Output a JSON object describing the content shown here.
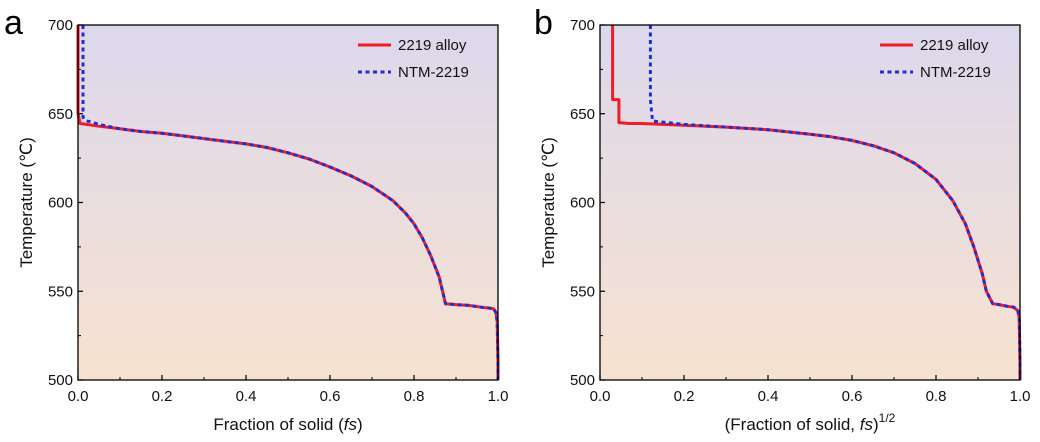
{
  "colors": {
    "alloy_2219": "#ee1c25",
    "ntm_2219": "#1f2fd6",
    "bg_top": "#dcd8ec",
    "bg_bottom": "#f7e2d0"
  },
  "chart_data": [
    {
      "type": "line",
      "panel_label": "a",
      "xlabel_main": "Fraction of solid (",
      "xlabel_italic": "fs",
      "xlabel_end": ")",
      "xlabel_sup": "",
      "ylabel": "Temperature (℃)",
      "xlim": [
        0.0,
        1.0
      ],
      "ylim": [
        500,
        700
      ],
      "xticks": [
        "0.0",
        "0.2",
        "0.4",
        "0.6",
        "0.8",
        "1.0"
      ],
      "yticks": [
        "500",
        "550",
        "600",
        "650",
        "700"
      ],
      "legend_position": "top-right",
      "series": [
        {
          "name": "2219 alloy",
          "style": "solid",
          "x": [
            0.0,
            0.0,
            0.0,
            0.005,
            0.02,
            0.05,
            0.1,
            0.15,
            0.2,
            0.25,
            0.3,
            0.35,
            0.4,
            0.45,
            0.5,
            0.55,
            0.6,
            0.65,
            0.7,
            0.75,
            0.78,
            0.8,
            0.82,
            0.84,
            0.86,
            0.875,
            0.9,
            0.93,
            0.96,
            0.98,
            0.99,
            0.995,
            0.998,
            1.0,
            1.0
          ],
          "y": [
            700,
            660,
            650,
            644.5,
            644,
            643,
            641.5,
            640,
            639,
            637.5,
            636,
            634.5,
            633,
            631,
            628,
            624.5,
            620,
            615,
            609,
            601,
            594,
            588,
            580,
            570,
            558,
            543,
            542.5,
            542,
            541,
            540.5,
            540,
            538,
            533,
            510,
            500
          ]
        },
        {
          "name": "NTM-2219",
          "style": "dotted",
          "x": [
            0.012,
            0.012,
            0.015,
            0.02,
            0.03,
            0.05,
            0.1,
            0.15,
            0.2,
            0.25,
            0.3,
            0.35,
            0.4,
            0.45,
            0.5,
            0.55,
            0.6,
            0.65,
            0.7,
            0.75,
            0.78,
            0.8,
            0.82,
            0.84,
            0.86,
            0.875,
            0.9,
            0.93,
            0.96,
            0.98,
            0.99,
            0.995,
            0.998,
            1.0,
            1.0
          ],
          "y": [
            700,
            648,
            647,
            646,
            645.5,
            644,
            641.5,
            640,
            639,
            637.5,
            636,
            634.5,
            633,
            631,
            628,
            624.5,
            620,
            615,
            609,
            601,
            594,
            588,
            580,
            570,
            558,
            543,
            542.5,
            542,
            541,
            540.5,
            540,
            538,
            533,
            510,
            500
          ]
        }
      ]
    },
    {
      "type": "line",
      "panel_label": "b",
      "xlabel_main": "(Fraction of solid, ",
      "xlabel_italic": "fs",
      "xlabel_end": ")",
      "xlabel_sup": "1/2",
      "ylabel": "Temperature (℃)",
      "xlim": [
        0.0,
        1.0
      ],
      "ylim": [
        500,
        700
      ],
      "xticks": [
        "0.0",
        "0.2",
        "0.4",
        "0.6",
        "0.8",
        "1.0"
      ],
      "yticks": [
        "500",
        "550",
        "600",
        "650",
        "700"
      ],
      "legend_position": "top-right",
      "series": [
        {
          "name": "2219 alloy",
          "style": "solid",
          "x": [
            0.03,
            0.03,
            0.045,
            0.045,
            0.07,
            0.1,
            0.2,
            0.3,
            0.4,
            0.5,
            0.55,
            0.6,
            0.65,
            0.7,
            0.75,
            0.8,
            0.84,
            0.87,
            0.89,
            0.91,
            0.92,
            0.935,
            0.95,
            0.97,
            0.985,
            0.995,
            0.998,
            1.0,
            1.0
          ],
          "y": [
            700,
            658,
            658,
            645,
            644.5,
            644.5,
            643.5,
            642.5,
            641,
            638.5,
            637,
            635,
            632,
            628,
            622,
            613,
            601,
            588,
            575,
            560,
            550,
            543,
            542.5,
            541.5,
            541,
            539,
            535,
            510,
            500
          ]
        },
        {
          "name": "NTM-2219",
          "style": "dotted",
          "x": [
            0.12,
            0.12,
            0.125,
            0.14,
            0.2,
            0.3,
            0.4,
            0.5,
            0.55,
            0.6,
            0.65,
            0.7,
            0.75,
            0.8,
            0.84,
            0.87,
            0.89,
            0.91,
            0.92,
            0.935,
            0.95,
            0.97,
            0.985,
            0.995,
            0.998,
            1.0,
            1.0
          ],
          "y": [
            700,
            658,
            646,
            645.5,
            644,
            642.5,
            641,
            638.5,
            637,
            635,
            632,
            628,
            622,
            613,
            601,
            588,
            575,
            560,
            550,
            543,
            542.5,
            541.5,
            541,
            539,
            535,
            510,
            500
          ]
        }
      ]
    }
  ]
}
